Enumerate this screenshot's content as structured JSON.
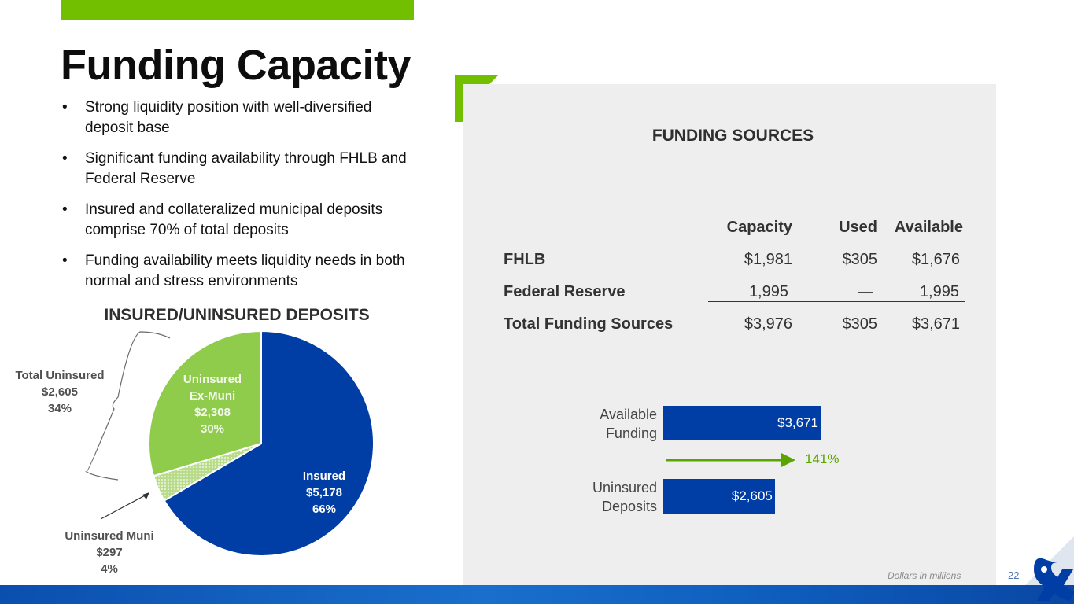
{
  "slide": {
    "title": "Funding Capacity",
    "bullets": [
      "Strong liquidity position with well-diversified deposit base",
      "Significant funding availability through FHLB and Federal Reserve",
      "Insured and collateralized municipal deposits comprise 70% of total deposits",
      "Funding availability meets liquidity needs in both normal and stress environments"
    ],
    "note": "Dollars in millions",
    "page_number": "22",
    "colors": {
      "accent_green": "#72bf00",
      "brand_blue": "#003da5",
      "light_green": "#8fcc4c",
      "panel_grey": "#eeeeee"
    }
  },
  "table": {
    "title": "FUNDING SOURCES",
    "headers": [
      "Capacity",
      "Used",
      "Available"
    ],
    "rows": [
      {
        "label": "FHLB",
        "capacity": "$1,981",
        "used": "$305",
        "available": "$1,676"
      },
      {
        "label": "Federal Reserve",
        "capacity": "1,995",
        "used": "—",
        "available": "1,995"
      },
      {
        "label": "Total Funding Sources",
        "capacity": "$3,976",
        "used": "$305",
        "available": "$3,671"
      }
    ]
  },
  "pie_labels": {
    "uninsured_ex_muni": [
      "Uninsured",
      "Ex-Muni",
      "$2,308",
      "30%"
    ],
    "insured": [
      "Insured",
      "$5,178",
      "66%"
    ],
    "uninsured_muni": [
      "Uninsured Muni",
      "$297",
      "4%"
    ],
    "total_uninsured": [
      "Total Uninsured",
      "$2,605",
      "34%"
    ]
  },
  "bar_labels": {
    "available": [
      "Available",
      "Funding"
    ],
    "uninsured": [
      "Uninsured",
      "Deposits"
    ],
    "available_value": "$3,671",
    "uninsured_value": "$2,605",
    "coverage": "141%"
  },
  "chart_data": [
    {
      "type": "pie",
      "title": "INSURED/UNINSURED DEPOSITS",
      "categories": [
        "Insured",
        "Uninsured Muni",
        "Uninsured Ex-Muni"
      ],
      "values": [
        5178,
        297,
        2308
      ],
      "percent": [
        66,
        4,
        30
      ],
      "colors": [
        "#003da5",
        "#c9e3a8",
        "#8fcc4c"
      ]
    },
    {
      "type": "bar",
      "orientation": "horizontal",
      "categories": [
        "Available Funding",
        "Uninsured Deposits"
      ],
      "values": [
        3671,
        2605
      ],
      "annotation": "141%"
    }
  ]
}
